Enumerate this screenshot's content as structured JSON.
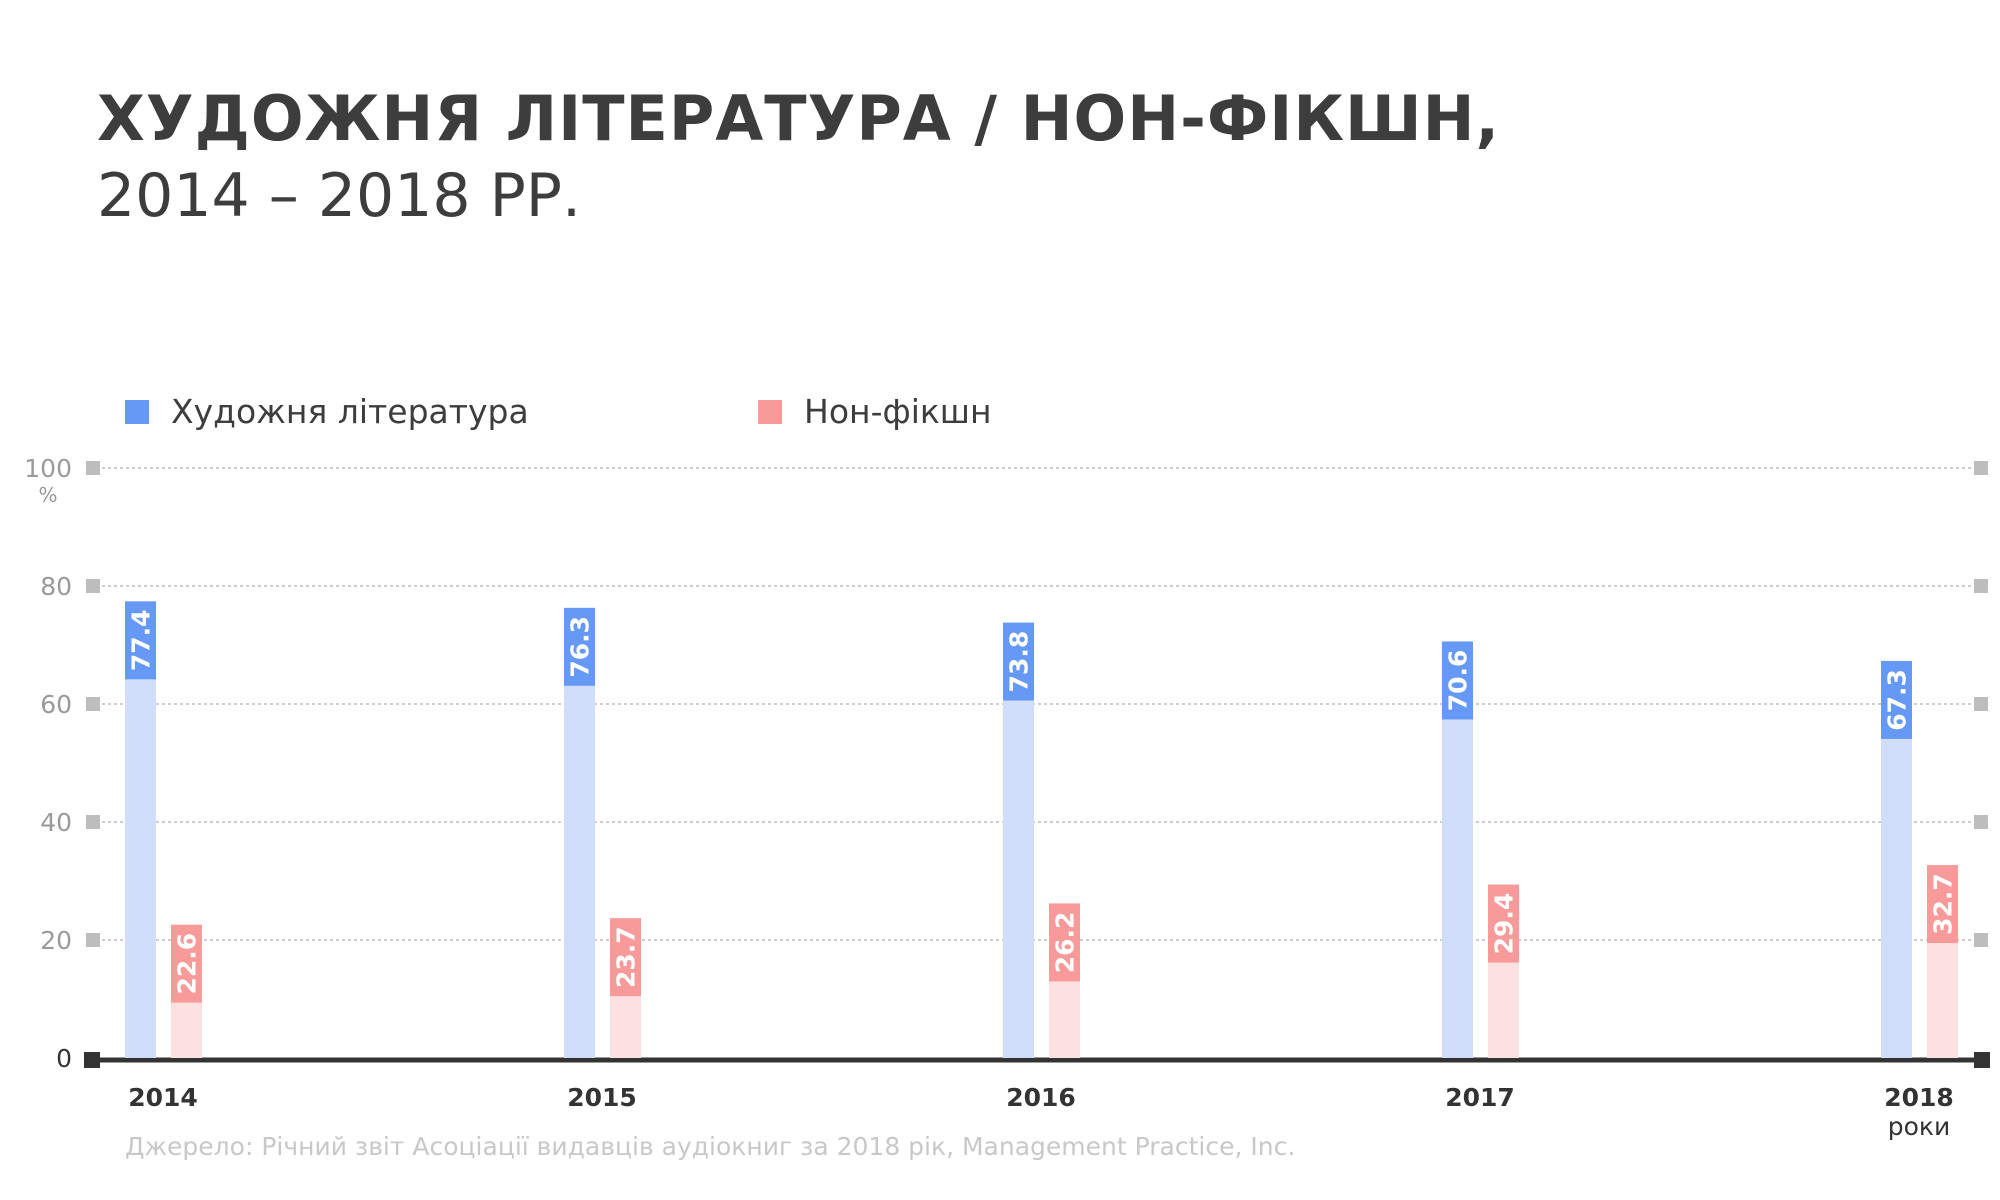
{
  "title": "ХУДОЖНЯ ЛІТЕРАТУРА / НОН-ФІКШН,",
  "subtitle": "2014 – 2018 РР.",
  "source": "Джерело: Річний звіт Асоціації видавців аудіокниг за 2018 рік, Management Practice, Inc.",
  "colors": {
    "fiction_dark": "#6699f5",
    "fiction_light": "#d0defc",
    "nonfiction_dark": "#f89a9a",
    "nonfiction_light": "#fde0e0",
    "axis": "#333333",
    "grid": "#bdbdbd",
    "tick_label": "#9a9a9a"
  },
  "chart_data": {
    "type": "bar",
    "categories": [
      "2014",
      "2015",
      "2016",
      "2017",
      "2018"
    ],
    "series": [
      {
        "name": "Художня література",
        "values": [
          77.4,
          76.3,
          73.8,
          70.6,
          67.3
        ]
      },
      {
        "name": "Нон-фікшн",
        "values": [
          22.6,
          23.7,
          26.2,
          29.4,
          32.7
        ]
      }
    ],
    "ylim": [
      0,
      100
    ],
    "yticks": [
      "0",
      "20",
      "40",
      "60",
      "80",
      "100"
    ],
    "ylabel": "%",
    "xlabel": "роки",
    "grid": true,
    "legend_position": "top-left"
  }
}
